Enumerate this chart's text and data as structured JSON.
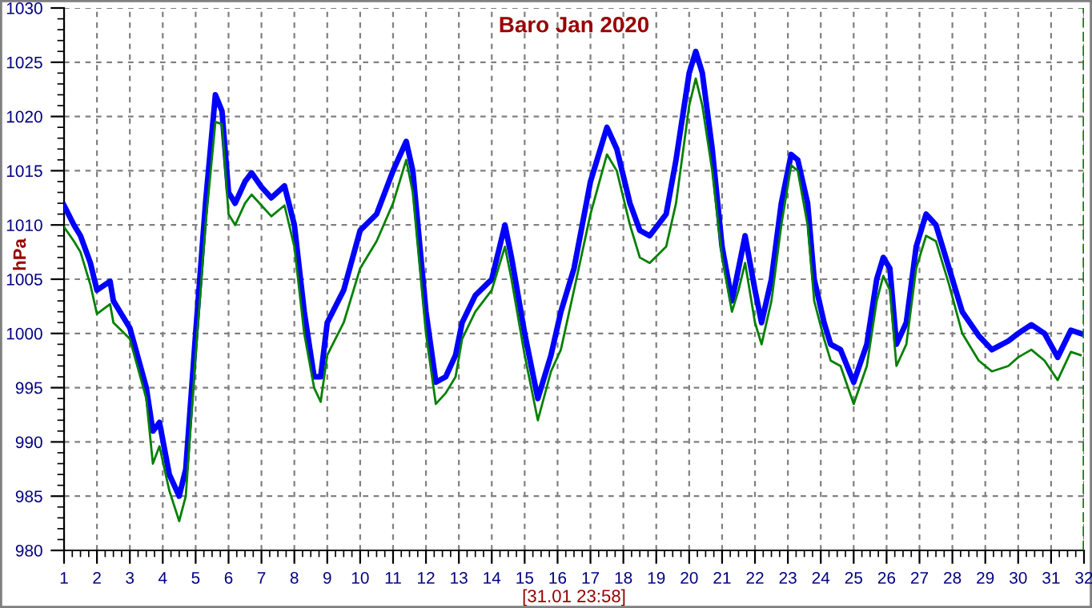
{
  "chart_data": {
    "type": "line",
    "title": "Baro Jan 2020",
    "xlabel": "[31.01 23:58]",
    "ylabel": "hPa",
    "xlim": [
      1,
      32
    ],
    "ylim": [
      980,
      1030
    ],
    "xticks": [
      1,
      2,
      3,
      4,
      5,
      6,
      7,
      8,
      9,
      10,
      11,
      12,
      13,
      14,
      15,
      16,
      17,
      18,
      19,
      20,
      21,
      22,
      23,
      24,
      25,
      26,
      27,
      28,
      29,
      30,
      31,
      32
    ],
    "yticks": [
      980,
      985,
      990,
      995,
      1000,
      1005,
      1010,
      1015,
      1020,
      1025,
      1030
    ],
    "grid": true,
    "marker": "none",
    "line_style": "solid",
    "x": [
      1.0,
      1.3,
      1.5,
      1.8,
      2.0,
      2.4,
      2.5,
      3.0,
      3.5,
      3.7,
      3.9,
      4.2,
      4.5,
      4.7,
      5.0,
      5.3,
      5.6,
      5.8,
      6.0,
      6.2,
      6.5,
      6.7,
      7.0,
      7.3,
      7.7,
      8.0,
      8.3,
      8.6,
      8.8,
      9.0,
      9.5,
      10.0,
      10.5,
      11.0,
      11.4,
      11.6,
      12.0,
      12.3,
      12.6,
      12.9,
      13.1,
      13.5,
      14.0,
      14.4,
      14.6,
      15.0,
      15.4,
      15.8,
      16.1,
      16.5,
      17.0,
      17.5,
      17.8,
      18.2,
      18.5,
      18.8,
      19.3,
      19.6,
      20.0,
      20.2,
      20.4,
      20.7,
      21.0,
      21.3,
      21.5,
      21.7,
      22.0,
      22.2,
      22.5,
      22.8,
      23.1,
      23.3,
      23.6,
      23.8,
      24.1,
      24.3,
      24.6,
      25.0,
      25.4,
      25.7,
      25.9,
      26.1,
      26.3,
      26.6,
      26.9,
      27.2,
      27.5,
      27.9,
      28.3,
      28.8,
      29.2,
      29.7,
      30.0,
      30.4,
      30.8,
      31.2,
      31.6,
      31.9
    ],
    "series": [
      {
        "color": "#0000ff",
        "values": [
          1011.8,
          1010,
          1009,
          1006.5,
          1004,
          1004.8,
          1003,
          1000.5,
          995,
          991,
          991.8,
          987,
          985,
          987.5,
          1000,
          1012,
          1022,
          1020.5,
          1013,
          1012,
          1014,
          1014.8,
          1013.5,
          1012.5,
          1013.6,
          1010,
          1002,
          996,
          996,
          1001,
          1004,
          1009.5,
          1011,
          1015,
          1017.7,
          1015,
          1002,
          995.5,
          996,
          998,
          1001,
          1003.5,
          1005,
          1010,
          1007,
          1000,
          994,
          998,
          1002,
          1006,
          1014,
          1019,
          1017,
          1012,
          1009.5,
          1009,
          1011,
          1016,
          1024,
          1026,
          1024,
          1017,
          1008,
          1003,
          1006,
          1009,
          1004,
          1001,
          1005,
          1012,
          1016.5,
          1016,
          1012,
          1005,
          1001,
          999,
          998.5,
          995.5,
          999,
          1005,
          1007,
          1006,
          999,
          1001,
          1008,
          1011,
          1010,
          1006,
          1002,
          999.8,
          998.5,
          999.3,
          1000,
          1000.8,
          1000,
          997.8,
          1000.3,
          1000
        ]
      },
      {
        "color": "#008000",
        "values": [
          1009.8,
          1008.5,
          1007.5,
          1004.5,
          1001.8,
          1002.7,
          1001,
          999.5,
          994,
          988,
          989.6,
          985.5,
          982.7,
          985,
          998,
          1010,
          1019.5,
          1019.3,
          1011,
          1010,
          1012,
          1012.8,
          1011.8,
          1010.8,
          1011.8,
          1008,
          1000,
          995,
          993.7,
          998,
          1001,
          1006,
          1008.5,
          1012,
          1016,
          1013,
          1000,
          993.5,
          994.5,
          996,
          999.5,
          1002,
          1004,
          1008,
          1005,
          998,
          992,
          996.5,
          998.5,
          1004,
          1011,
          1016.5,
          1015,
          1010,
          1007,
          1006.5,
          1008,
          1012,
          1021,
          1023.5,
          1021,
          1015,
          1007,
          1002,
          1004,
          1006.5,
          1001,
          999,
          1003,
          1010,
          1015.5,
          1015,
          1010,
          1003,
          999.5,
          997.5,
          997,
          993.5,
          997,
          1003,
          1005.3,
          1004,
          997,
          999,
          1006,
          1009,
          1008.5,
          1004.5,
          1000,
          997.5,
          996.5,
          997,
          997.8,
          998.5,
          997.5,
          995.7,
          998.3,
          998
        ]
      }
    ],
    "ref_lines": [
      {
        "axis": "x",
        "value": 32,
        "color": "#008000",
        "line_style": "dashed"
      }
    ]
  }
}
